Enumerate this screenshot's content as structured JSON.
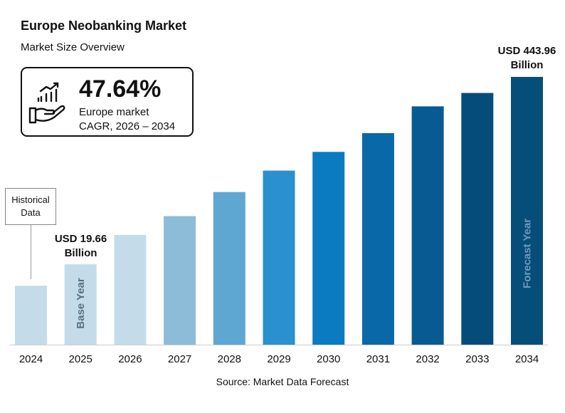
{
  "header": {
    "title": "Europe Neobanking Market",
    "subtitle": "Market Size Overview"
  },
  "cagr": {
    "icon": "growth-chart-hand-icon",
    "value": "47.64%",
    "line1": "Europe market",
    "line2": "CAGR, 2026 – 2034"
  },
  "annotations": {
    "historical": [
      "Historical",
      "Data"
    ],
    "base_year": "Base Year",
    "forecast_year": "Forecast Year",
    "start_label": [
      "USD 19.66",
      "Billion"
    ],
    "end_label": [
      "USD 443.96",
      "Billion"
    ]
  },
  "source": "Source:  Market Data Forecast",
  "chart_data": {
    "type": "bar",
    "categories": [
      "2024",
      "2025",
      "2026",
      "2027",
      "2028",
      "2029",
      "2030",
      "2031",
      "2032",
      "2033",
      "2034"
    ],
    "values": [
      null,
      19.66,
      null,
      null,
      null,
      null,
      null,
      null,
      null,
      null,
      443.96
    ],
    "unit": "USD Billion",
    "relative_level_percent": [
      22,
      30,
      41,
      48,
      57,
      65,
      72,
      79,
      89,
      94,
      100
    ],
    "colors": [
      "#c4dcea",
      "#c4dcea",
      "#c4dcea",
      "#8dbcd9",
      "#5ea7d3",
      "#2a90cf",
      "#0b7bc1",
      "#0968a8",
      "#075a92",
      "#054c7a",
      "#054e79"
    ],
    "axis_color": "#cccccc",
    "grid": false,
    "legend": "none"
  }
}
